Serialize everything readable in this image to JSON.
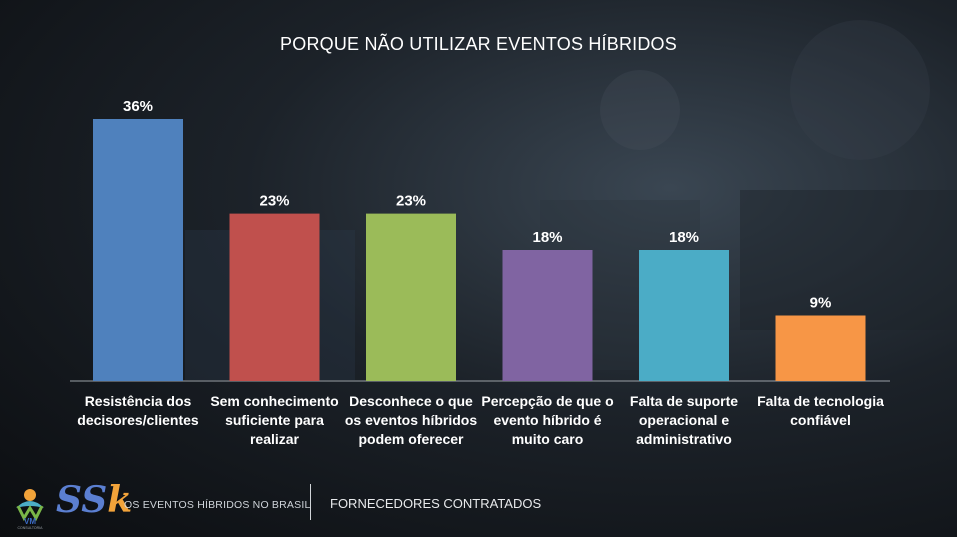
{
  "title": "PORQUE NÃO UTILIZAR EVENTOS HÍBRIDOS",
  "chart_data": {
    "type": "bar",
    "title": "PORQUE NÃO UTILIZAR EVENTOS HÍBRIDOS",
    "categories": [
      "Resistência dos\ndecisores/clientes",
      "Sem conhecimento\nsuficiente para\nrealizar",
      "Desconhece o que\nos eventos híbridos\npodem oferecer",
      "Percepção de que o\nevento híbrido é\nmuito caro",
      "Falta de suporte\noperacional e\nadministrativo",
      "Falta de tecnologia\nconfiável"
    ],
    "values": [
      36,
      23,
      23,
      18,
      18,
      9
    ],
    "value_labels": [
      "36%",
      "23%",
      "23%",
      "18%",
      "18%",
      "9%"
    ],
    "colors": [
      "#4f81bd",
      "#c0504d",
      "#9bbb59",
      "#8064a2",
      "#4bacc6",
      "#f79646"
    ],
    "ylim": [
      0,
      36
    ],
    "grid": false,
    "legend": "none",
    "xlabel": "",
    "ylabel": ""
  },
  "footer": {
    "logo_vm_text": "VM",
    "logo_vm_sub": "CONSULTORIA",
    "logo_ssk_s1": "S",
    "logo_ssk_s2": "S",
    "logo_ssk_k": "k",
    "left_text": "OS EVENTOS HÍBRIDOS NO BRASIL",
    "right_text": "FORNECEDORES CONTRATADOS"
  }
}
